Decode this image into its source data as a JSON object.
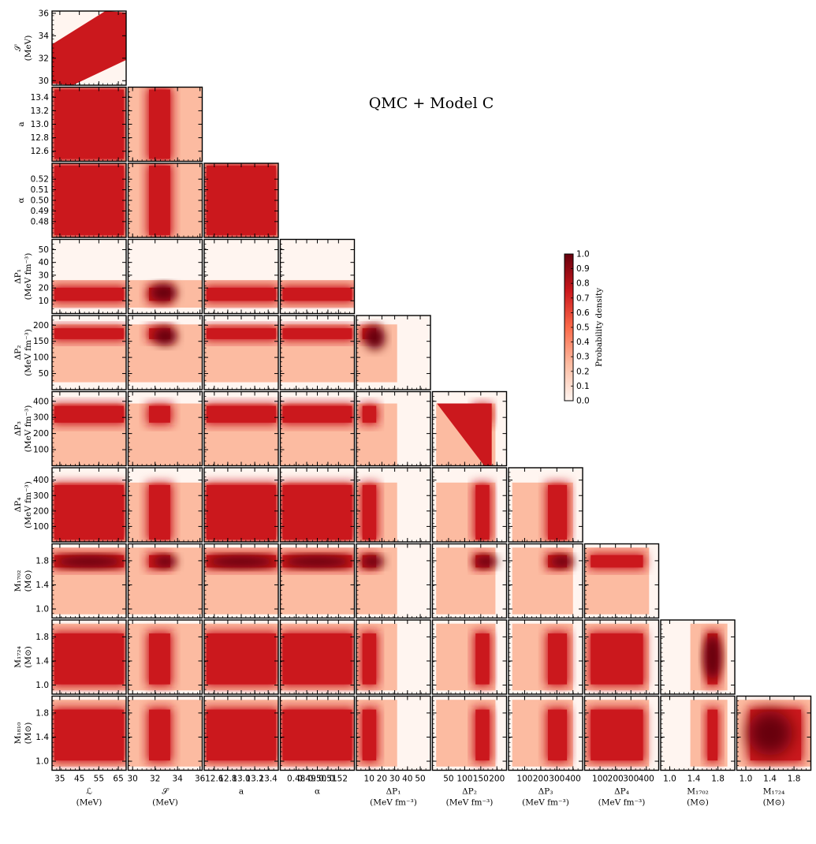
{
  "chart_data": {
    "type": "heatmap",
    "subtype": "corner-plot",
    "title": "QMC + Model C",
    "colorbar": {
      "label": "Probability density",
      "range": [
        0.0,
        1.0
      ],
      "ticks": [
        "0.0",
        "0.1",
        "0.2",
        "0.3",
        "0.4",
        "0.5",
        "0.6",
        "0.7",
        "0.8",
        "0.9",
        "1.0"
      ],
      "colormap": [
        "#fff5f0",
        "#fcbba1",
        "#fb6a4a",
        "#cb181d",
        "#67000d"
      ]
    },
    "parameters": [
      {
        "id": "L",
        "symbol": "ℒ",
        "unit": "(MeV)",
        "range": [
          31,
          69
        ],
        "ticks": [
          35,
          45,
          55,
          65
        ],
        "tick_labels": [
          "35",
          "45",
          "55",
          "65"
        ]
      },
      {
        "id": "S",
        "symbol": "𝒮",
        "unit": "(MeV)",
        "range": [
          29.6,
          36.2
        ],
        "ticks": [
          30,
          32,
          34,
          36
        ],
        "tick_labels": [
          "30",
          "32",
          "34",
          "36"
        ]
      },
      {
        "id": "a",
        "symbol": "a",
        "unit": "",
        "range": [
          12.45,
          13.55
        ],
        "ticks": [
          12.6,
          12.8,
          13.0,
          13.2,
          13.4
        ],
        "tick_labels": [
          "12.6",
          "12.8",
          "13.0",
          "13.2",
          "13.4"
        ]
      },
      {
        "id": "alpha",
        "symbol": "α",
        "unit": "",
        "range": [
          0.465,
          0.535
        ],
        "ticks": [
          0.48,
          0.49,
          0.5,
          0.51,
          0.52
        ],
        "tick_labels": [
          "0.48",
          "0.49",
          "0.50",
          "0.51",
          "0.52"
        ]
      },
      {
        "id": "dP1",
        "symbol": "ΔP₁",
        "unit": "(MeV fm⁻³)",
        "range": [
          0,
          58
        ],
        "ticks": [
          10,
          20,
          30,
          40,
          50
        ],
        "tick_labels": [
          "10",
          "20",
          "30",
          "40",
          "50"
        ]
      },
      {
        "id": "dP2",
        "symbol": "ΔP₂",
        "unit": "(MeV fm⁻³)",
        "range": [
          0,
          230
        ],
        "ticks": [
          50,
          100,
          150,
          200
        ],
        "tick_labels": [
          "50",
          "100",
          "150",
          "200"
        ]
      },
      {
        "id": "dP3",
        "symbol": "ΔP₃",
        "unit": "(MeV fm⁻³)",
        "range": [
          0,
          460
        ],
        "ticks": [
          100,
          200,
          300,
          400
        ],
        "tick_labels": [
          "100",
          "200",
          "300",
          "400"
        ]
      },
      {
        "id": "dP4",
        "symbol": "ΔP₄",
        "unit": "(MeV fm⁻³)",
        "range": [
          0,
          480
        ],
        "ticks": [
          100,
          200,
          300,
          400
        ],
        "tick_labels": [
          "100",
          "200",
          "300",
          "400"
        ]
      },
      {
        "id": "M1702",
        "symbol": "M₁₇₀₂",
        "unit": "(M⊙)",
        "range": [
          0.85,
          2.08
        ],
        "ticks": [
          1.0,
          1.4,
          1.8
        ],
        "tick_labels": [
          "1.0",
          "1.4",
          "1.8"
        ],
        "ytick_labels": [
          "1.0",
          "1.4",
          "1.8"
        ]
      },
      {
        "id": "M1724",
        "symbol": "M₁₇₂₄",
        "unit": "(M⊙)",
        "range": [
          0.85,
          2.08
        ],
        "ticks": [
          1.0,
          1.4,
          1.8
        ],
        "tick_labels": [
          "1.0",
          "1.4",
          "1.8"
        ]
      },
      {
        "id": "M1810",
        "symbol": "M₁₈₁₀",
        "unit": "(M⊙)",
        "range": [
          0.85,
          2.08
        ],
        "ticks": [
          1.0,
          1.4,
          1.8
        ],
        "tick_labels": [
          "1.0",
          "1.4",
          "1.8"
        ]
      }
    ],
    "y_axis_labels": [
      {
        "row": 1,
        "symbol": "𝒮",
        "unit": "(MeV)"
      },
      {
        "row": 2,
        "symbol": "a",
        "unit": ""
      },
      {
        "row": 3,
        "symbol": "α",
        "unit": ""
      },
      {
        "row": 4,
        "symbol": "ΔP₁",
        "unit": "(MeV fm⁻³)"
      },
      {
        "row": 5,
        "symbol": "ΔP₂",
        "unit": "(MeV fm⁻³)"
      },
      {
        "row": 6,
        "symbol": "ΔP₃",
        "unit": "(MeV fm⁻³)"
      },
      {
        "row": 7,
        "symbol": "ΔP₄",
        "unit": "(MeV fm⁻³)"
      },
      {
        "row": 8,
        "symbol": "M₁₇₀₂",
        "unit": "(M⊙)"
      },
      {
        "row": 9,
        "symbol": "M₁₇₂₄",
        "unit": "(M⊙)"
      },
      {
        "row": 10,
        "symbol": "M₁₈₁₀",
        "unit": "(M⊙)"
      }
    ],
    "x_axis_labels": [
      {
        "col": 0,
        "symbol": "ℒ",
        "unit": "(MeV)"
      },
      {
        "col": 1,
        "symbol": "𝒮",
        "unit": "(MeV)"
      },
      {
        "col": 2,
        "symbol": "a",
        "unit": ""
      },
      {
        "col": 3,
        "symbol": "α",
        "unit": ""
      },
      {
        "col": 4,
        "symbol": "ΔP₁",
        "unit": "(MeV fm⁻³)"
      },
      {
        "col": 5,
        "symbol": "ΔP₂",
        "unit": "(MeV fm⁻³)"
      },
      {
        "col": 6,
        "symbol": "ΔP₃",
        "unit": "(MeV fm⁻³)"
      },
      {
        "col": 7,
        "symbol": "ΔP₄",
        "unit": "(MeV fm⁻³)"
      },
      {
        "col": 8,
        "symbol": "M₁₇₀₂",
        "unit": "(M⊙)"
      },
      {
        "col": 9,
        "symbol": "M₁₇₂₄",
        "unit": "(M⊙)"
      }
    ],
    "y_ticks_by_row": [
      {
        "row": 1,
        "values": [
          30,
          32,
          34,
          36
        ],
        "labels": [
          "30",
          "32",
          "34",
          "36"
        ]
      },
      {
        "row": 2,
        "values": [
          12.6,
          12.8,
          13.0,
          13.2,
          13.4
        ],
        "labels": [
          "12.6",
          "12.8",
          "13.0",
          "13.2",
          "13.4"
        ]
      },
      {
        "row": 3,
        "values": [
          0.48,
          0.49,
          0.5,
          0.51,
          0.52
        ],
        "labels": [
          "0.48",
          "0.49",
          "0.50",
          "0.51",
          "0.52"
        ]
      },
      {
        "row": 4,
        "values": [
          10,
          20,
          30,
          40,
          50
        ],
        "labels": [
          "10",
          "20",
          "30",
          "40",
          "50"
        ]
      },
      {
        "row": 5,
        "values": [
          50,
          100,
          150,
          200
        ],
        "labels": [
          "50",
          "100",
          "150",
          "200"
        ]
      },
      {
        "row": 6,
        "values": [
          100,
          200,
          300,
          400
        ],
        "labels": [
          "100",
          "200",
          "300",
          "400"
        ]
      },
      {
        "row": 7,
        "values": [
          100,
          200,
          300,
          400
        ],
        "labels": [
          "100",
          "200",
          "300",
          "400"
        ]
      },
      {
        "row": 8,
        "values": [
          1.0,
          1.4,
          1.8
        ],
        "labels": [
          "1.0",
          "1.4",
          "1.8"
        ]
      },
      {
        "row": 9,
        "values": [
          1.0,
          1.4,
          1.8
        ],
        "labels": [
          "1.0",
          "1.4",
          "1.8"
        ]
      },
      {
        "row": 10,
        "values": [
          1.0,
          1.4,
          1.8
        ],
        "labels": [
          "1.0",
          "1.4",
          "1.8"
        ]
      }
    ],
    "posterior_features": {
      "L_S": "correlated band, S rising with L",
      "dP1": "peak near 12 MeV fm^-3",
      "dP2": "concentrated near 150-200 MeV fm^-3, cut above 200",
      "dP3": "cut above about 390 MeV fm^-3",
      "dP4": "cut above about 390 MeV fm^-3",
      "M1702": "peak near 1.85 Msun",
      "M1724": "broad 1.0-1.9 Msun",
      "M1810": "broad 0.9-1.9 Msun"
    }
  }
}
